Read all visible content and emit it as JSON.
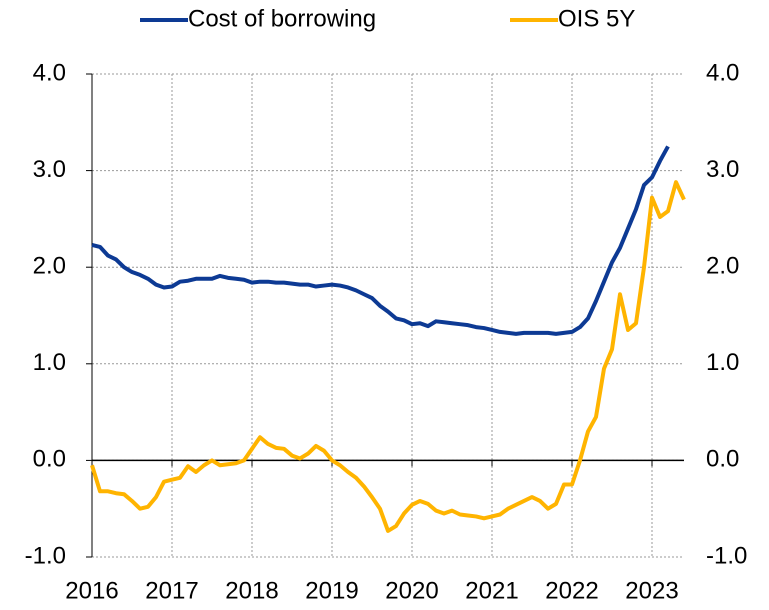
{
  "chart_data": {
    "type": "line",
    "x": [
      2016.0,
      2016.1,
      2016.2,
      2016.3,
      2016.4,
      2016.5,
      2016.6,
      2016.7,
      2016.8,
      2016.9,
      2017.0,
      2017.1,
      2017.2,
      2017.3,
      2017.4,
      2017.5,
      2017.6,
      2017.7,
      2017.8,
      2017.9,
      2018.0,
      2018.1,
      2018.2,
      2018.3,
      2018.4,
      2018.5,
      2018.6,
      2018.7,
      2018.8,
      2018.9,
      2019.0,
      2019.1,
      2019.2,
      2019.3,
      2019.4,
      2019.5,
      2019.6,
      2019.7,
      2019.8,
      2019.9,
      2020.0,
      2020.1,
      2020.2,
      2020.3,
      2020.4,
      2020.5,
      2020.6,
      2020.7,
      2020.8,
      2020.9,
      2021.0,
      2021.1,
      2021.2,
      2021.3,
      2021.4,
      2021.5,
      2021.6,
      2021.7,
      2021.8,
      2021.9,
      2022.0,
      2022.1,
      2022.2,
      2022.3,
      2022.4,
      2022.5,
      2022.6,
      2022.7,
      2022.8,
      2022.9,
      2023.0,
      2023.1,
      2023.2,
      2023.3,
      2023.4
    ],
    "series": [
      {
        "name": "Cost of borrowing",
        "color": "#0d3a94",
        "values": [
          2.23,
          2.21,
          2.12,
          2.08,
          2.0,
          1.95,
          1.92,
          1.88,
          1.82,
          1.79,
          1.8,
          1.85,
          1.86,
          1.88,
          1.88,
          1.88,
          1.91,
          1.89,
          1.88,
          1.87,
          1.84,
          1.85,
          1.85,
          1.84,
          1.84,
          1.83,
          1.82,
          1.82,
          1.8,
          1.81,
          1.82,
          1.81,
          1.79,
          1.76,
          1.72,
          1.68,
          1.6,
          1.54,
          1.47,
          1.45,
          1.41,
          1.42,
          1.39,
          1.44,
          1.43,
          1.42,
          1.41,
          1.4,
          1.38,
          1.37,
          1.35,
          1.33,
          1.32,
          1.31,
          1.32,
          1.32,
          1.32,
          1.32,
          1.31,
          1.32,
          1.33,
          1.38,
          1.47,
          1.65,
          1.85,
          2.05,
          2.2,
          2.4,
          2.6,
          2.85,
          2.93,
          3.1,
          3.25,
          null,
          null
        ]
      },
      {
        "name": "OIS 5Y",
        "color": "#ffb400",
        "values": [
          -0.05,
          -0.32,
          -0.32,
          -0.34,
          -0.35,
          -0.42,
          -0.5,
          -0.48,
          -0.38,
          -0.22,
          -0.2,
          -0.18,
          -0.06,
          -0.12,
          -0.05,
          0.0,
          -0.05,
          -0.04,
          -0.03,
          0.0,
          0.12,
          0.24,
          0.17,
          0.13,
          0.12,
          0.05,
          0.02,
          0.07,
          0.15,
          0.1,
          0.0,
          -0.05,
          -0.12,
          -0.18,
          -0.27,
          -0.38,
          -0.5,
          -0.73,
          -0.68,
          -0.55,
          -0.46,
          -0.42,
          -0.45,
          -0.52,
          -0.55,
          -0.52,
          -0.56,
          -0.57,
          -0.58,
          -0.6,
          -0.58,
          -0.56,
          -0.5,
          -0.46,
          -0.42,
          -0.38,
          -0.42,
          -0.5,
          -0.45,
          -0.25,
          -0.25,
          0.0,
          0.3,
          0.45,
          0.95,
          1.15,
          1.72,
          1.35,
          1.42,
          2.0,
          2.72,
          2.52,
          2.58,
          2.88,
          2.7
        ]
      }
    ],
    "xlim": [
      2016,
      2023.4
    ],
    "xticks": [
      2016,
      2017,
      2018,
      2019,
      2020,
      2021,
      2022,
      2023
    ],
    "ylim": [
      -1,
      4
    ],
    "yticks": [
      {
        "value": -1,
        "label": "-1.0"
      },
      {
        "value": 0,
        "label": "0.0"
      },
      {
        "value": 1,
        "label": "1.0"
      },
      {
        "value": 2,
        "label": "2.0"
      },
      {
        "value": 3,
        "label": "3.0"
      },
      {
        "value": 4,
        "label": "4.0"
      }
    ],
    "y2lim": [
      -1,
      4
    ],
    "y2ticks": [
      {
        "value": -1,
        "label": "-1.0"
      },
      {
        "value": 0,
        "label": "0.0"
      },
      {
        "value": 1,
        "label": "1.0"
      },
      {
        "value": 2,
        "label": "2.0"
      },
      {
        "value": 3,
        "label": "3.0"
      },
      {
        "value": 4,
        "label": "4.0"
      }
    ],
    "grid": true,
    "legend": "top"
  }
}
